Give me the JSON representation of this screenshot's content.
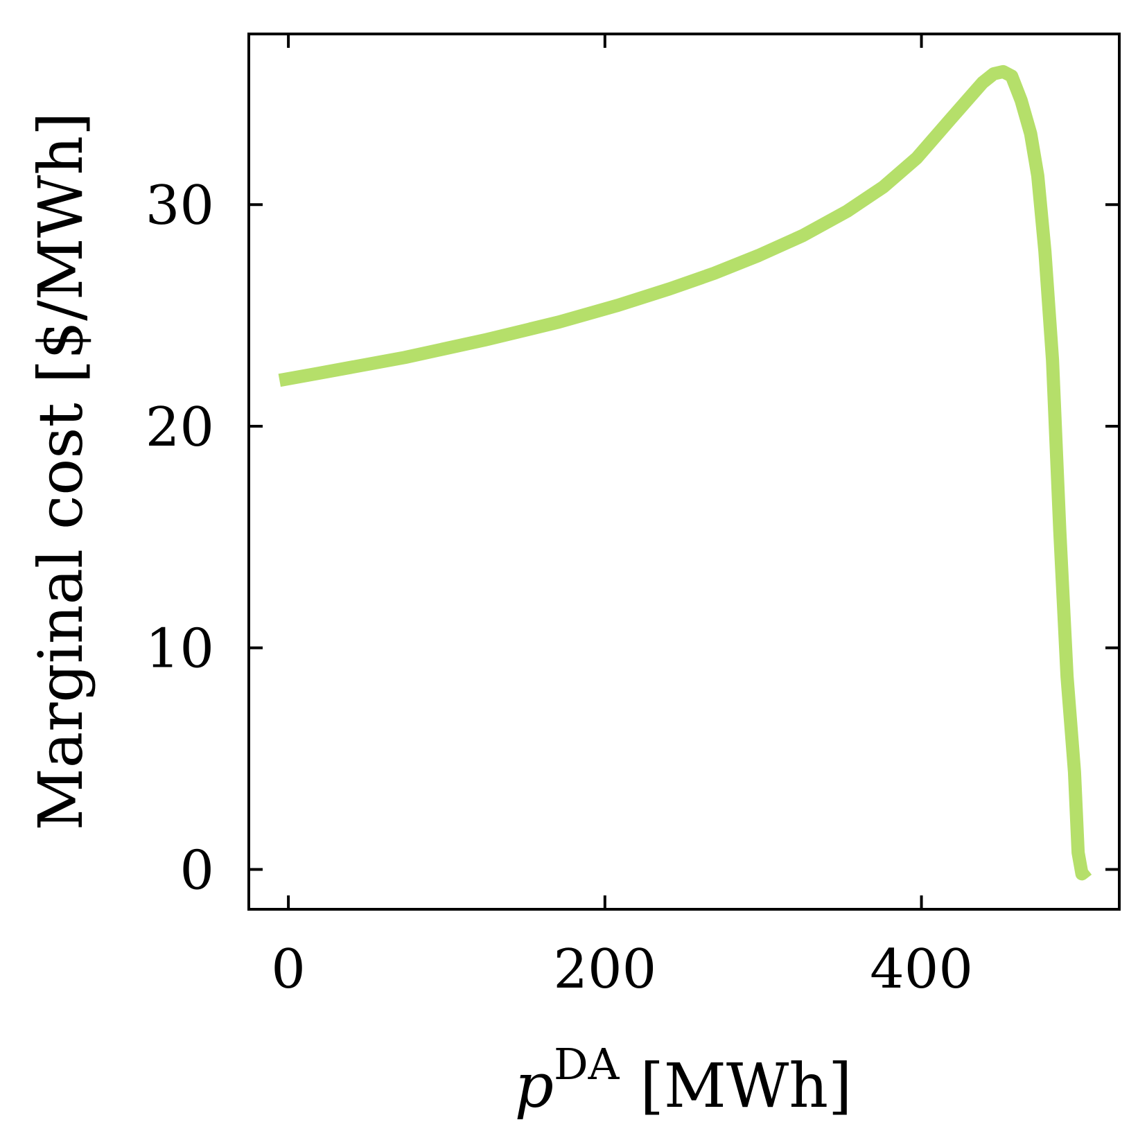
{
  "chart_data": {
    "type": "line",
    "xlabel": {
      "base": "p",
      "sup": "DA",
      "unit": "[MWh]"
    },
    "ylabel": "Marginal cost [$/MWh]",
    "x": [
      -5.6,
      17.7,
      73.5,
      124.7,
      171,
      208,
      241,
      269,
      297,
      325,
      353,
      376,
      397,
      417.7,
      438.6,
      445.6,
      451.6,
      457,
      463,
      469,
      473.5,
      478,
      482.8,
      487.4,
      492,
      496.7,
      499,
      501.4,
      505
    ],
    "series": [
      {
        "name": "Marginal cost",
        "color": "#b5df6a",
        "values": [
          22.07,
          22.37,
          23.1,
          23.9,
          24.7,
          25.45,
          26.2,
          26.9,
          27.7,
          28.6,
          29.7,
          30.8,
          32.1,
          33.8,
          35.5,
          35.9,
          36.0,
          35.8,
          34.7,
          33.2,
          31.3,
          27.9,
          23.0,
          15.3,
          8.7,
          4.4,
          0.76,
          -0.2,
          0.0
        ]
      }
    ],
    "xlim": [
      -25,
      525
    ],
    "ylim": [
      -1.8,
      37.7
    ],
    "xticks": [
      0,
      200,
      400
    ],
    "yticks": [
      0,
      10,
      20,
      30
    ]
  }
}
